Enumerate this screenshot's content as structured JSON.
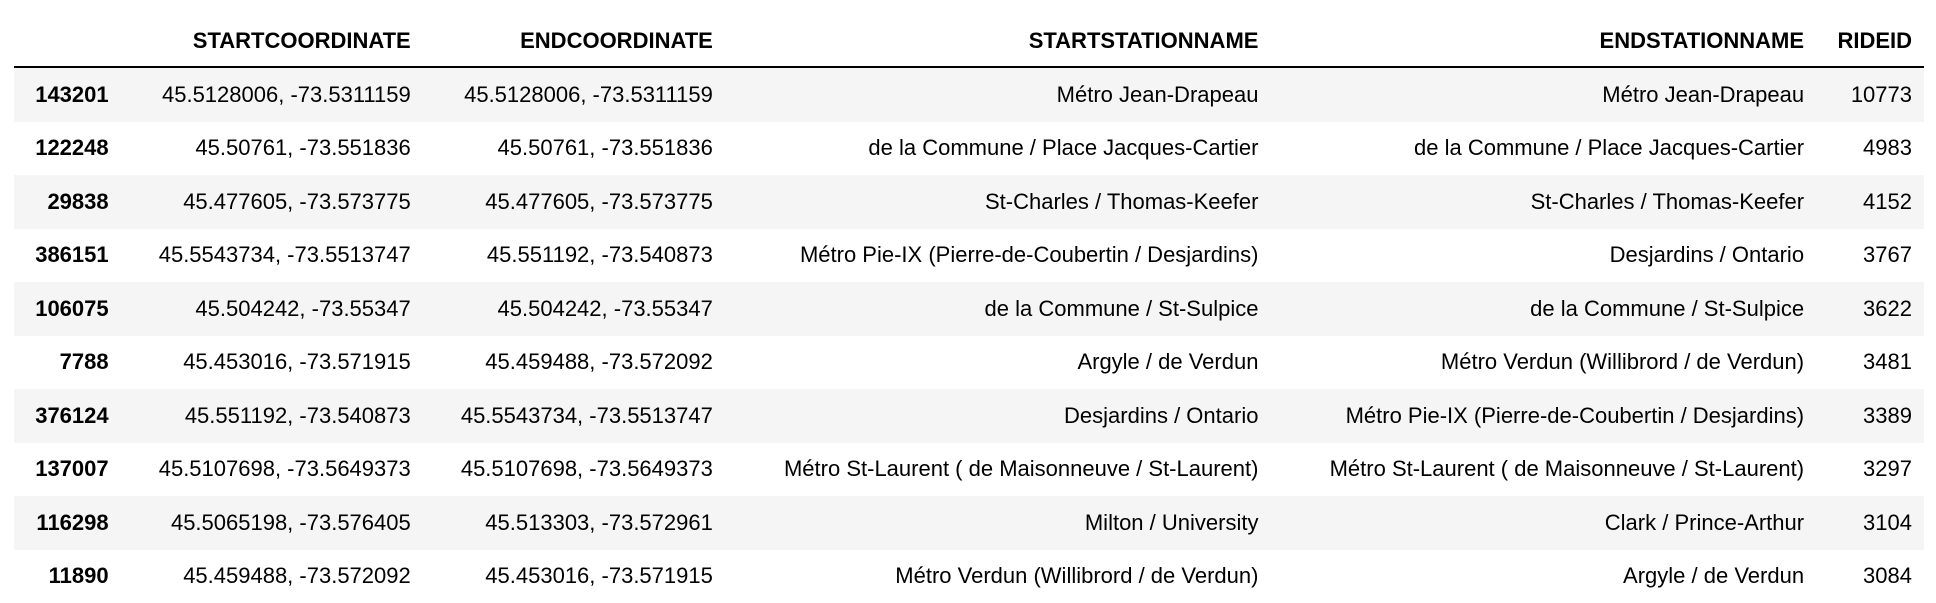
{
  "table": {
    "index_header": "",
    "columns": [
      "STARTCOORDINATE",
      "ENDCOORDINATE",
      "STARTSTATIONNAME",
      "ENDSTATIONNAME",
      "RIDEID"
    ],
    "rows": [
      {
        "index": "143201",
        "cells": [
          "45.5128006, -73.5311159",
          "45.5128006, -73.5311159",
          "Métro Jean-Drapeau",
          "Métro Jean-Drapeau",
          "10773"
        ]
      },
      {
        "index": "122248",
        "cells": [
          "45.50761, -73.551836",
          "45.50761, -73.551836",
          "de la Commune / Place Jacques-Cartier",
          "de la Commune / Place Jacques-Cartier",
          "4983"
        ]
      },
      {
        "index": "29838",
        "cells": [
          "45.477605, -73.573775",
          "45.477605, -73.573775",
          "St-Charles / Thomas-Keefer",
          "St-Charles / Thomas-Keefer",
          "4152"
        ]
      },
      {
        "index": "386151",
        "cells": [
          "45.5543734, -73.5513747",
          "45.551192, -73.540873",
          "Métro Pie-IX (Pierre-de-Coubertin / Desjardins)",
          "Desjardins / Ontario",
          "3767"
        ]
      },
      {
        "index": "106075",
        "cells": [
          "45.504242, -73.55347",
          "45.504242, -73.55347",
          "de la Commune / St-Sulpice",
          "de la Commune / St-Sulpice",
          "3622"
        ]
      },
      {
        "index": "7788",
        "cells": [
          "45.453016, -73.571915",
          "45.459488, -73.572092",
          "Argyle / de Verdun",
          "Métro Verdun (Willibrord / de Verdun)",
          "3481"
        ]
      },
      {
        "index": "376124",
        "cells": [
          "45.551192, -73.540873",
          "45.5543734, -73.5513747",
          "Desjardins / Ontario",
          "Métro Pie-IX (Pierre-de-Coubertin / Desjardins)",
          "3389"
        ]
      },
      {
        "index": "137007",
        "cells": [
          "45.5107698, -73.5649373",
          "45.5107698, -73.5649373",
          "Métro St-Laurent ( de Maisonneuve / St-Laurent)",
          "Métro St-Laurent ( de Maisonneuve / St-Laurent)",
          "3297"
        ]
      },
      {
        "index": "116298",
        "cells": [
          "45.5065198, -73.576405",
          "45.513303, -73.572961",
          "Milton / University",
          "Clark / Prince-Arthur",
          "3104"
        ]
      },
      {
        "index": "11890",
        "cells": [
          "45.459488, -73.572092",
          "45.453016, -73.571915",
          "Métro Verdun (Willibrord / de Verdun)",
          "Argyle / de Verdun",
          "3084"
        ]
      }
    ]
  }
}
